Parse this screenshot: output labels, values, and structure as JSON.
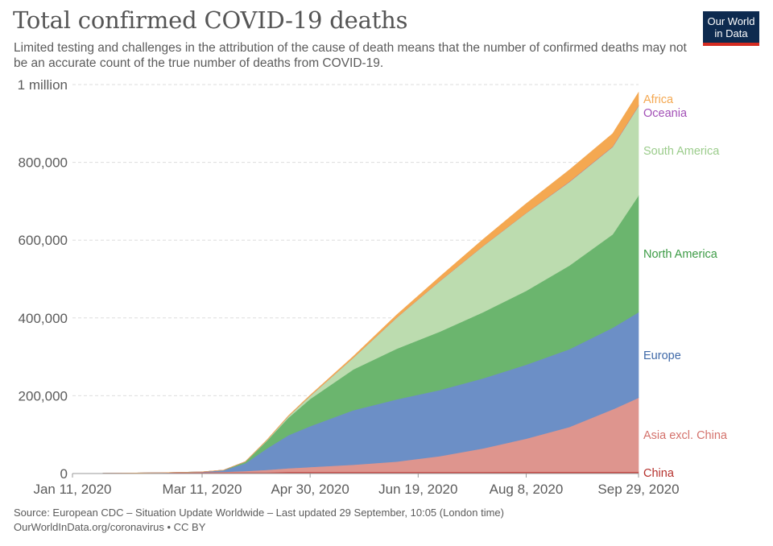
{
  "title": "Total confirmed COVID-19 deaths",
  "subtitle": "Limited testing and challenges in the attribution of the cause of death means that the number of confirmed deaths may not be an accurate count of the true number of deaths from COVID-19.",
  "logo": {
    "line1": "Our World",
    "line2": "in Data"
  },
  "footer": {
    "source": "Source: European CDC – Situation Update Worldwide – Last updated 29 September, 10:05 (London time)",
    "url": "OurWorldInData.org/coronavirus • CC BY"
  },
  "chart_data": {
    "type": "area",
    "stacked": true,
    "grid": true,
    "ylim": [
      0,
      1000000
    ],
    "y_ticks": [
      {
        "value": 0,
        "label": "0"
      },
      {
        "value": 200000,
        "label": "200,000"
      },
      {
        "value": 400000,
        "label": "400,000"
      },
      {
        "value": 600000,
        "label": "600,000"
      },
      {
        "value": 800000,
        "label": "800,000"
      },
      {
        "value": 1000000,
        "label": "1 million"
      }
    ],
    "x_ticks": [
      {
        "value": "2020-01-11",
        "label": "Jan 11, 2020"
      },
      {
        "value": "2020-03-11",
        "label": "Mar 11, 2020"
      },
      {
        "value": "2020-04-30",
        "label": "Apr 30, 2020"
      },
      {
        "value": "2020-06-19",
        "label": "Jun 19, 2020"
      },
      {
        "value": "2020-08-08",
        "label": "Aug 8, 2020"
      },
      {
        "value": "2020-09-29",
        "label": "Sep 29, 2020"
      }
    ],
    "xlim": [
      "2020-01-11",
      "2020-09-29"
    ],
    "x": [
      "2020-01-11",
      "2020-02-20",
      "2020-03-11",
      "2020-03-21",
      "2020-03-31",
      "2020-04-10",
      "2020-04-20",
      "2020-04-30",
      "2020-05-20",
      "2020-06-09",
      "2020-06-29",
      "2020-07-19",
      "2020-08-08",
      "2020-08-28",
      "2020-09-17",
      "2020-09-29"
    ],
    "series": [
      {
        "name": "China",
        "color": "#c8504c",
        "values": [
          0,
          2100,
          3200,
          3250,
          3300,
          3340,
          4630,
          4640,
          4640,
          4640,
          4640,
          4640,
          4680,
          4720,
          4730,
          4740
        ]
      },
      {
        "name": "Asia excl. China",
        "color": "#de958e",
        "values": [
          0,
          20,
          400,
          1200,
          3000,
          6000,
          9000,
          12000,
          18000,
          26000,
          40000,
          60000,
          85000,
          115000,
          160000,
          190000
        ]
      },
      {
        "name": "Europe",
        "color": "#6c8fc6",
        "values": [
          0,
          0,
          800,
          4000,
          20000,
          55000,
          85000,
          105000,
          140000,
          160000,
          170000,
          180000,
          190000,
          200000,
          210000,
          220000
        ]
      },
      {
        "name": "North America",
        "color": "#6bb56e",
        "values": [
          0,
          0,
          40,
          500,
          4000,
          20000,
          45000,
          70000,
          105000,
          130000,
          150000,
          170000,
          190000,
          215000,
          240000,
          300000
        ]
      },
      {
        "name": "South America",
        "color": "#bcdcaf",
        "values": [
          0,
          0,
          0,
          20,
          300,
          1500,
          4000,
          8000,
          30000,
          80000,
          130000,
          170000,
          200000,
          215000,
          225000,
          230000
        ]
      },
      {
        "name": "Oceania",
        "color": "#a24fb6",
        "values": [
          0,
          0,
          0,
          0,
          10,
          60,
          100,
          110,
          120,
          120,
          150,
          180,
          350,
          800,
          900,
          950
        ]
      },
      {
        "name": "Africa",
        "color": "#f4a851",
        "values": [
          0,
          0,
          0,
          20,
          200,
          700,
          1200,
          1800,
          3500,
          7000,
          11000,
          17000,
          24000,
          30000,
          33000,
          34000
        ]
      }
    ],
    "labels": [
      {
        "name": "Africa",
        "color": "#f4a851"
      },
      {
        "name": "Oceania",
        "color": "#a24fb6"
      },
      {
        "name": "South America",
        "color": "#9bcc8b"
      },
      {
        "name": "North America",
        "color": "#3c9b45"
      },
      {
        "name": "Europe",
        "color": "#3f69a8"
      },
      {
        "name": "Asia excl. China",
        "color": "#d4726c"
      },
      {
        "name": "China",
        "color": "#b5302c"
      }
    ]
  }
}
